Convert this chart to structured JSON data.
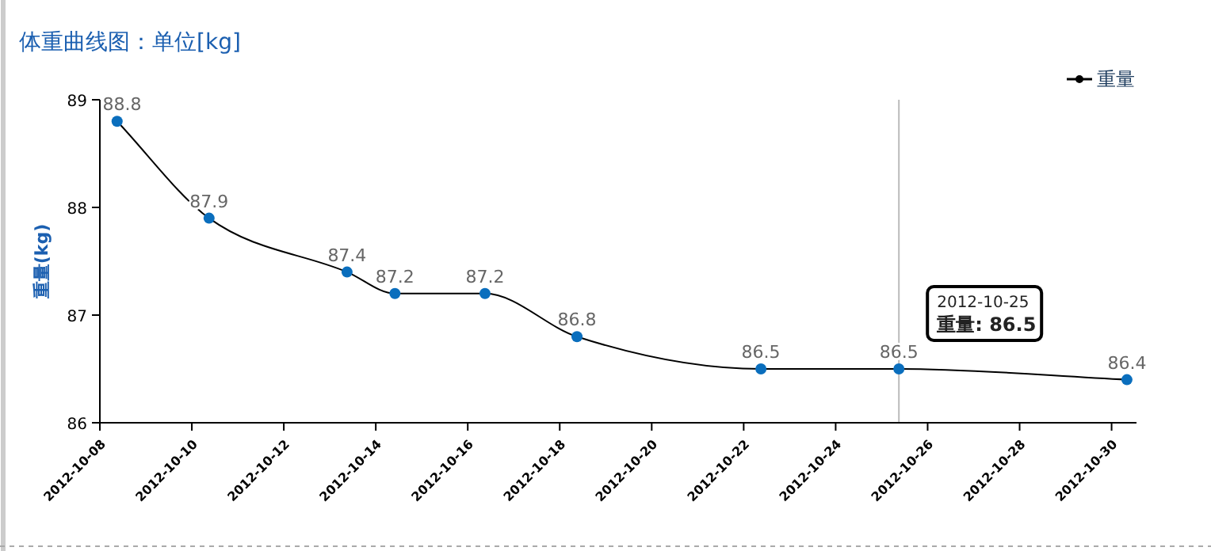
{
  "chart_data": {
    "type": "line",
    "title": "体重曲线图：单位[kg]",
    "ylabel": "重量(kg)",
    "x": [
      "2012-10-08T09:00",
      "2012-10-10T09:00",
      "2012-10-13T09:00",
      "2012-10-14T10:00",
      "2012-10-16T09:00",
      "2012-10-18T09:00",
      "2012-10-22T09:00",
      "2012-10-25T09:00",
      "2012-10-30T08:00"
    ],
    "series": [
      {
        "name": "重量",
        "color": "#000000",
        "colors": [
          "#0a6ebd",
          "#0a6ebd",
          "#0a6ebd",
          "#0a6ebd",
          "#0a6ebd",
          "#0a6ebd",
          "#0a6ebd",
          "#0a6ebd",
          "#0a6ebd"
        ],
        "values": [
          88.8,
          87.9,
          87.4,
          87.2,
          87.2,
          86.8,
          86.5,
          86.5,
          86.4
        ]
      }
    ],
    "data_labels": true,
    "marker": "circle",
    "legend": "top right",
    "grid": false,
    "xlim": [
      "2012-10-08",
      "2012-10-30T13:00"
    ],
    "xticks": [
      "2012-10-08",
      "2012-10-10",
      "2012-10-12",
      "2012-10-14",
      "2012-10-16",
      "2012-10-18",
      "2012-10-20",
      "2012-10-22",
      "2012-10-24",
      "2012-10-26",
      "2012-10-28",
      "2012-10-30"
    ],
    "ylim": [
      86,
      89
    ],
    "yticks": [
      86,
      87,
      88,
      89
    ],
    "ref_lines": [
      {
        "axis": "x",
        "value": "2012-10-25T09:00",
        "color": "#bbbbbb"
      }
    ],
    "annotations": [
      {
        "text": "2012-10-25\n重量: 86.5",
        "x": "2012-10-25T09:00",
        "y": 86.5
      }
    ]
  }
}
